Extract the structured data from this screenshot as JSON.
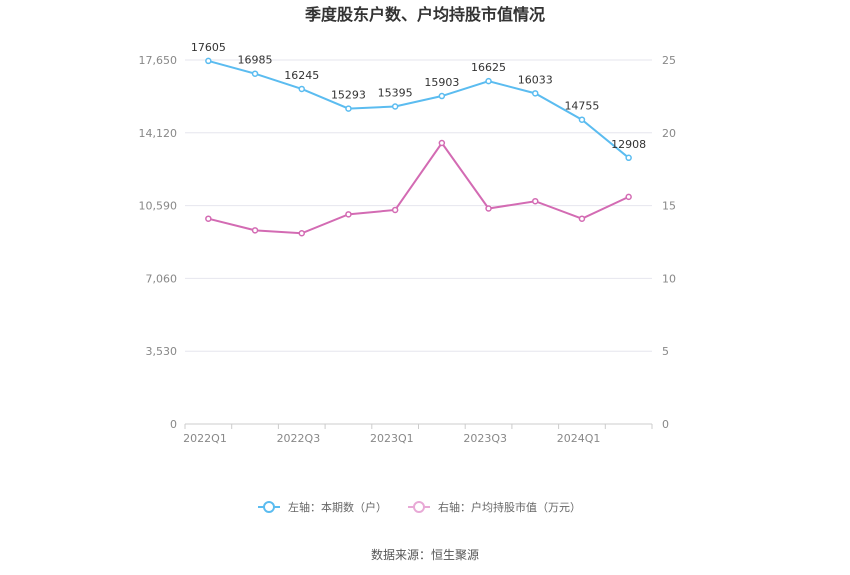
{
  "chart_data": {
    "type": "line",
    "title": "季度股东户数、户均持股市值情况",
    "categories": [
      "2022Q1",
      "2022Q2",
      "2022Q3",
      "2022Q4",
      "2023Q1",
      "2023Q2",
      "2023Q3",
      "2023Q4",
      "2024Q1",
      "2024Q2"
    ],
    "x_tick_labels": [
      "2022Q1",
      "2022Q3",
      "2023Q1",
      "2023Q3",
      "2024Q1"
    ],
    "left_axis": {
      "ticks": [
        "0",
        "3,530",
        "7,060",
        "10,590",
        "14,120",
        "17,650"
      ],
      "ylim": [
        0,
        17650
      ]
    },
    "right_axis": {
      "ticks": [
        "0",
        "5",
        "10",
        "15",
        "20",
        "25"
      ],
      "ylim": [
        0,
        25
      ]
    },
    "series": [
      {
        "name": "左轴：本期数（户）",
        "axis": "left",
        "color": "#5bbcf0",
        "values": [
          17605,
          16985,
          16245,
          15293,
          15395,
          15903,
          16625,
          16033,
          14755,
          12908
        ],
        "labels": [
          "17605",
          "16985",
          "16245",
          "15293",
          "15395",
          "15903",
          "16625",
          "16033",
          "14755",
          "12908"
        ]
      },
      {
        "name": "右轴：户均持股市值（万元）",
        "axis": "right",
        "color": "#d36bb3",
        "values": [
          14.1,
          13.3,
          13.1,
          14.4,
          14.7,
          19.3,
          14.8,
          15.3,
          14.1,
          15.6
        ]
      }
    ],
    "grid": true,
    "legend_position": "bottom"
  },
  "footer": {
    "source": "数据来源：恒生聚源"
  }
}
